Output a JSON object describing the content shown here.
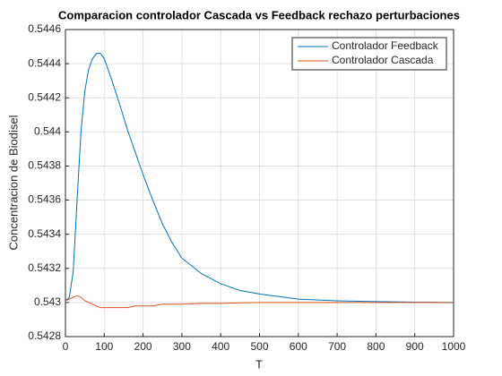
{
  "chart_data": {
    "type": "line",
    "title": "Comparacion controlador Cascada vs Feedback rechazo perturbaciones",
    "xlabel": "T",
    "ylabel": "Concentracion de Biodisel",
    "x": [
      0,
      10,
      20,
      30,
      40,
      50,
      60,
      70,
      80,
      90,
      100,
      120,
      140,
      160,
      180,
      200,
      225,
      250,
      275,
      300,
      350,
      400,
      450,
      500,
      600,
      700,
      800,
      900,
      1000
    ],
    "series": [
      {
        "name": "Controlador Feedback",
        "color": "#0072bd",
        "values": [
          0.54301,
          0.54303,
          0.54318,
          0.5436,
          0.544,
          0.54424,
          0.54437,
          0.54443,
          0.54446,
          0.54446,
          0.54443,
          0.5443,
          0.54416,
          0.54401,
          0.54388,
          0.54375,
          0.5436,
          0.54346,
          0.54335,
          0.54326,
          0.54317,
          0.54311,
          0.54307,
          0.54305,
          0.54302,
          0.54301,
          0.543005,
          0.543002,
          0.543
        ]
      },
      {
        "name": "Controlador Cascada",
        "color": "#d95319",
        "values": [
          0.54301,
          0.54302,
          0.54303,
          0.54304,
          0.54303,
          0.54301,
          0.543,
          0.54299,
          0.54298,
          0.54297,
          0.54297,
          0.54297,
          0.54297,
          0.54297,
          0.54298,
          0.54298,
          0.54298,
          0.54299,
          0.54299,
          0.54299,
          0.542995,
          0.542995,
          0.542998,
          0.543,
          0.543,
          0.543,
          0.543,
          0.543,
          0.543
        ]
      }
    ],
    "xlim": [
      0,
      1000
    ],
    "xticks": [
      0,
      100,
      200,
      300,
      400,
      500,
      600,
      700,
      800,
      900,
      1000
    ],
    "ylim": [
      0.5428,
      0.5446
    ],
    "yticks": [
      0.5428,
      0.543,
      0.5432,
      0.5434,
      0.5436,
      0.5438,
      0.544,
      0.5442,
      0.5444,
      0.5446
    ],
    "grid": true,
    "legend": "northeast"
  }
}
